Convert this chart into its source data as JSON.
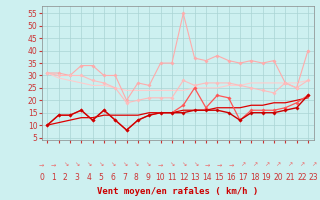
{
  "xlabel": "Vent moyen/en rafales ( km/h )",
  "background_color": "#cdf0f0",
  "grid_color": "#aad4d4",
  "x": [
    0,
    1,
    2,
    3,
    4,
    5,
    6,
    7,
    8,
    9,
    10,
    11,
    12,
    13,
    14,
    15,
    16,
    17,
    18,
    19,
    20,
    21,
    22,
    23
  ],
  "series": [
    {
      "name": "rafales_max",
      "color": "#ffaaaa",
      "linewidth": 0.8,
      "marker": "D",
      "markersize": 1.8,
      "values": [
        31,
        31,
        30,
        34,
        34,
        30,
        30,
        20,
        27,
        26,
        35,
        35,
        55,
        37,
        36,
        38,
        36,
        35,
        36,
        35,
        36,
        27,
        25,
        40
      ]
    },
    {
      "name": "rafales_line2",
      "color": "#ffbbbb",
      "linewidth": 0.8,
      "marker": "D",
      "markersize": 1.8,
      "values": [
        31,
        30,
        30,
        30,
        28,
        27,
        25,
        19,
        20,
        21,
        21,
        21,
        28,
        26,
        27,
        27,
        27,
        26,
        25,
        24,
        23,
        27,
        25,
        28
      ]
    },
    {
      "name": "rafales_smooth",
      "color": "#ffcccc",
      "linewidth": 0.8,
      "marker": null,
      "markersize": 0,
      "values": [
        31,
        29,
        28,
        27,
        26,
        26,
        25,
        24,
        24,
        24,
        24,
        24,
        24,
        25,
        25,
        25,
        26,
        26,
        27,
        27,
        27,
        27,
        27,
        28
      ]
    },
    {
      "name": "vent_line1",
      "color": "#ff5555",
      "linewidth": 0.9,
      "marker": "D",
      "markersize": 1.8,
      "values": [
        10,
        14,
        14,
        16,
        12,
        16,
        12,
        8,
        12,
        14,
        15,
        15,
        18,
        25,
        17,
        22,
        21,
        12,
        16,
        16,
        16,
        17,
        19,
        22
      ]
    },
    {
      "name": "vent_line2",
      "color": "#cc0000",
      "linewidth": 1.0,
      "marker": "D",
      "markersize": 1.8,
      "values": [
        10,
        14,
        14,
        16,
        12,
        16,
        12,
        8,
        12,
        14,
        15,
        15,
        15,
        16,
        16,
        16,
        15,
        12,
        15,
        15,
        15,
        16,
        17,
        22
      ]
    },
    {
      "name": "vent_smooth",
      "color": "#dd0000",
      "linewidth": 0.9,
      "marker": null,
      "markersize": 0,
      "values": [
        10,
        11,
        12,
        13,
        13,
        14,
        14,
        14,
        14,
        15,
        15,
        15,
        16,
        16,
        16,
        17,
        17,
        17,
        18,
        18,
        19,
        19,
        20,
        21
      ]
    }
  ],
  "ylim": [
    4,
    58
  ],
  "yticks": [
    5,
    10,
    15,
    20,
    25,
    30,
    35,
    40,
    45,
    50,
    55
  ],
  "xticks": [
    0,
    1,
    2,
    3,
    4,
    5,
    6,
    7,
    8,
    9,
    10,
    11,
    12,
    13,
    14,
    15,
    16,
    17,
    18,
    19,
    20,
    21,
    22,
    23
  ],
  "arrows": [
    "→",
    "→",
    "↘",
    "↘",
    "↘",
    "↘",
    "↘",
    "↘",
    "↘",
    "↘",
    "→",
    "↘",
    "↘",
    "↘",
    "→",
    "→",
    "→",
    "↗",
    "↗",
    "↗",
    "↗",
    "↗",
    "↗",
    "↗"
  ],
  "arrow_color": "#ee6666",
  "xlabel_color": "#cc0000",
  "tick_color": "#cc3333",
  "label_fontsize": 6.5,
  "tick_fontsize": 5.5
}
